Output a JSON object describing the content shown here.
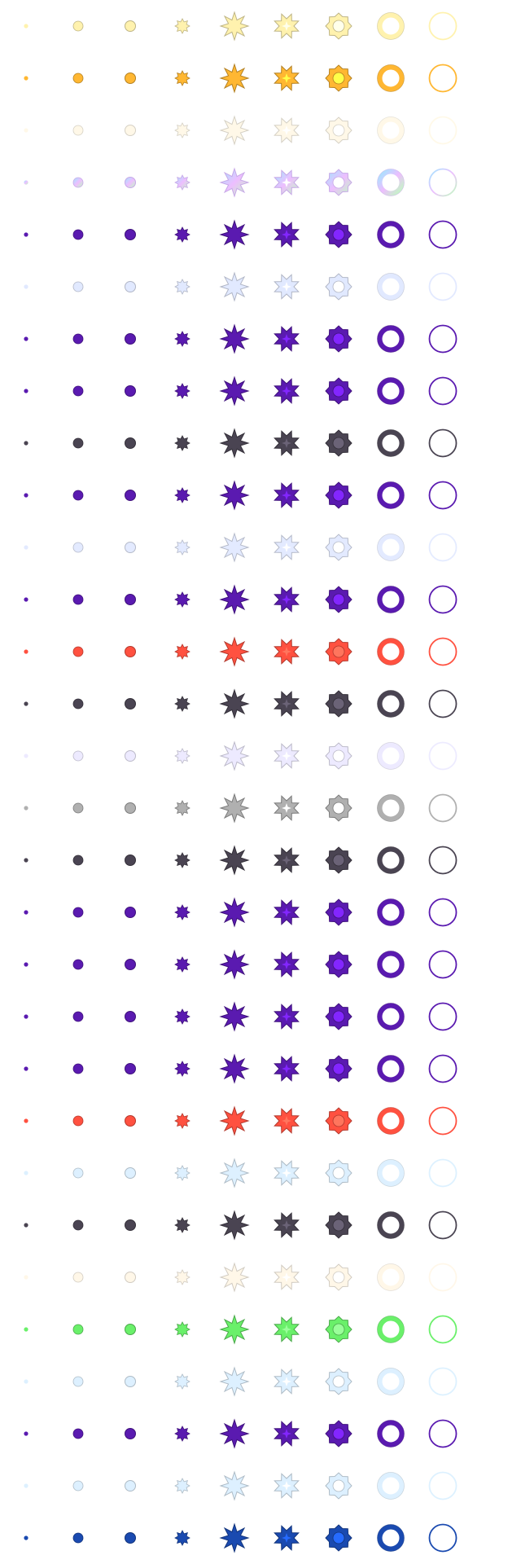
{
  "sprite_sheet": {
    "frame_shapes": [
      "dot",
      "small-circle",
      "circle",
      "burst-small",
      "star-large",
      "star-hollow-center",
      "octagon-ring",
      "ring-thick",
      "ring-thin"
    ],
    "rows": [
      {
        "name": "pale-yellow",
        "color": "#FFF0A0",
        "opacity": 0.85
      },
      {
        "name": "orange",
        "color": "#FFB732",
        "opacity": 1.0
      },
      {
        "name": "faint-cream",
        "color": "#FFF4D6",
        "opacity": 0.55
      },
      {
        "name": "prismatic",
        "color": "#C7A8F0",
        "opacity": 0.75,
        "prismatic": true
      },
      {
        "name": "purple",
        "color": "#5A1AB0",
        "opacity": 1.0
      },
      {
        "name": "pale-blue",
        "color": "#D8E2FF",
        "opacity": 0.75
      },
      {
        "name": "purple",
        "color": "#5A1AB0",
        "opacity": 1.0
      },
      {
        "name": "purple",
        "color": "#5A1AB0",
        "opacity": 1.0
      },
      {
        "name": "charcoal",
        "color": "#4A4452",
        "opacity": 1.0
      },
      {
        "name": "purple",
        "color": "#5A1AB0",
        "opacity": 1.0
      },
      {
        "name": "pale-blue",
        "color": "#D8E2FF",
        "opacity": 0.7
      },
      {
        "name": "purple",
        "color": "#5A1AB0",
        "opacity": 1.0
      },
      {
        "name": "red",
        "color": "#FF5140",
        "opacity": 1.0
      },
      {
        "name": "charcoal",
        "color": "#4A4452",
        "opacity": 1.0
      },
      {
        "name": "pale-lavender",
        "color": "#E6E2FF",
        "opacity": 0.7
      },
      {
        "name": "gray",
        "color": "#B0B0B0",
        "opacity": 1.0
      },
      {
        "name": "charcoal",
        "color": "#4A4452",
        "opacity": 1.0
      },
      {
        "name": "purple",
        "color": "#5A1AB0",
        "opacity": 1.0
      },
      {
        "name": "purple",
        "color": "#5A1AB0",
        "opacity": 1.0
      },
      {
        "name": "purple",
        "color": "#5A1AB0",
        "opacity": 1.0
      },
      {
        "name": "purple",
        "color": "#5A1AB0",
        "opacity": 1.0
      },
      {
        "name": "red",
        "color": "#FF5140",
        "opacity": 1.0
      },
      {
        "name": "pale-cyan",
        "color": "#D2ECFF",
        "opacity": 0.75
      },
      {
        "name": "charcoal",
        "color": "#4A4452",
        "opacity": 1.0
      },
      {
        "name": "faint-peach",
        "color": "#FFF2DA",
        "opacity": 0.6
      },
      {
        "name": "green",
        "color": "#6AF06A",
        "opacity": 1.0
      },
      {
        "name": "pale-cyan",
        "color": "#D2ECFF",
        "opacity": 0.75
      },
      {
        "name": "purple",
        "color": "#5A1AB0",
        "opacity": 1.0
      },
      {
        "name": "pale-cyan",
        "color": "#D2ECFF",
        "opacity": 0.75
      },
      {
        "name": "navy-blue",
        "color": "#1A4AB0",
        "opacity": 1.0
      }
    ]
  }
}
